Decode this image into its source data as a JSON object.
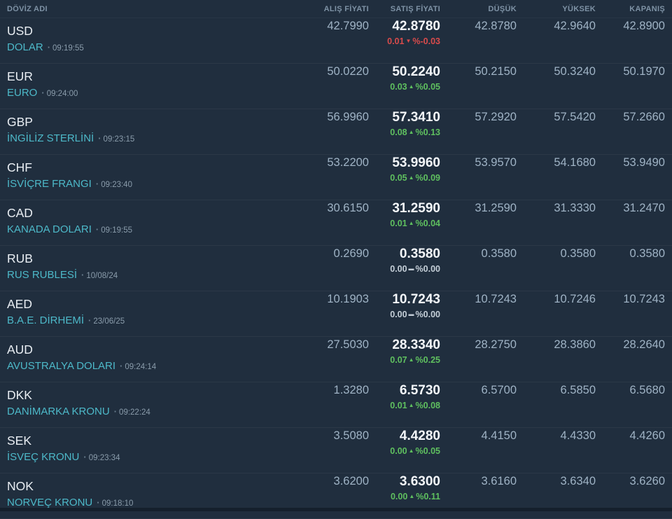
{
  "separator_dot": "·",
  "colors": {
    "background": "#202e3e",
    "accent_teal": "#4db9c9",
    "up_green": "#5fc05f",
    "down_red": "#d94b4b",
    "flat_gray": "#c5cfd8",
    "number_gray": "#9fb3c5",
    "sell_white": "#f4f7fa"
  },
  "columns": {
    "name": "DÖVİZ ADI",
    "buy": "ALIŞ FİYATI",
    "sell": "SATIŞ FİYATI",
    "low": "DÜŞÜK",
    "high": "YÜKSEK",
    "close": "KAPANIŞ"
  },
  "rows": [
    {
      "code": "USD",
      "name": "DOLAR",
      "time": "09:19:55",
      "buy": "42.7990",
      "sell": "42.8780",
      "change": {
        "amount": "0.01",
        "icon": "▼",
        "percent": "%-0.03",
        "direction": "down"
      },
      "low": "42.8780",
      "high": "42.9640",
      "close": "42.8900"
    },
    {
      "code": "EUR",
      "name": "EURO",
      "time": "09:24:00",
      "buy": "50.0220",
      "sell": "50.2240",
      "change": {
        "amount": "0.03",
        "icon": "▲",
        "percent": "%0.05",
        "direction": "up"
      },
      "low": "50.2150",
      "high": "50.3240",
      "close": "50.1970"
    },
    {
      "code": "GBP",
      "name": "İNGİLİZ STERLİNİ",
      "time": "09:23:15",
      "buy": "56.9960",
      "sell": "57.3410",
      "change": {
        "amount": "0.08",
        "icon": "▲",
        "percent": "%0.13",
        "direction": "up"
      },
      "low": "57.2920",
      "high": "57.5420",
      "close": "57.2660"
    },
    {
      "code": "CHF",
      "name": "İSVİÇRE FRANGI",
      "time": "09:23:40",
      "buy": "53.2200",
      "sell": "53.9960",
      "change": {
        "amount": "0.05",
        "icon": "▲",
        "percent": "%0.09",
        "direction": "up"
      },
      "low": "53.9570",
      "high": "54.1680",
      "close": "53.9490"
    },
    {
      "code": "CAD",
      "name": "KANADA DOLARI",
      "time": "09:19:55",
      "buy": "30.6150",
      "sell": "31.2590",
      "change": {
        "amount": "0.01",
        "icon": "▲",
        "percent": "%0.04",
        "direction": "up"
      },
      "low": "31.2590",
      "high": "31.3330",
      "close": "31.2470"
    },
    {
      "code": "RUB",
      "name": "RUS RUBLESİ",
      "time": "10/08/24",
      "buy": "0.2690",
      "sell": "0.3580",
      "change": {
        "amount": "0.00",
        "icon": "▬",
        "percent": "%0.00",
        "direction": "flat"
      },
      "low": "0.3580",
      "high": "0.3580",
      "close": "0.3580"
    },
    {
      "code": "AED",
      "name": "B.A.E. DİRHEMİ",
      "time": "23/06/25",
      "buy": "10.1903",
      "sell": "10.7243",
      "change": {
        "amount": "0.00",
        "icon": "▬",
        "percent": "%0.00",
        "direction": "flat"
      },
      "low": "10.7243",
      "high": "10.7246",
      "close": "10.7243"
    },
    {
      "code": "AUD",
      "name": "AVUSTRALYA DOLARI",
      "time": "09:24:14",
      "buy": "27.5030",
      "sell": "28.3340",
      "change": {
        "amount": "0.07",
        "icon": "▲",
        "percent": "%0.25",
        "direction": "up"
      },
      "low": "28.2750",
      "high": "28.3860",
      "close": "28.2640"
    },
    {
      "code": "DKK",
      "name": "DANİMARKA KRONU",
      "time": "09:22:24",
      "buy": "1.3280",
      "sell": "6.5730",
      "change": {
        "amount": "0.01",
        "icon": "▲",
        "percent": "%0.08",
        "direction": "up"
      },
      "low": "6.5700",
      "high": "6.5850",
      "close": "6.5680"
    },
    {
      "code": "SEK",
      "name": "İSVEÇ KRONU",
      "time": "09:23:34",
      "buy": "3.5080",
      "sell": "4.4280",
      "change": {
        "amount": "0.00",
        "icon": "▲",
        "percent": "%0.05",
        "direction": "up"
      },
      "low": "4.4150",
      "high": "4.4330",
      "close": "4.4260"
    },
    {
      "code": "NOK",
      "name": "NORVEÇ KRONU",
      "time": "09:18:10",
      "buy": "3.6200",
      "sell": "3.6300",
      "change": {
        "amount": "0.00",
        "icon": "▲",
        "percent": "%0.11",
        "direction": "up"
      },
      "low": "3.6160",
      "high": "3.6340",
      "close": "3.6260"
    }
  ]
}
